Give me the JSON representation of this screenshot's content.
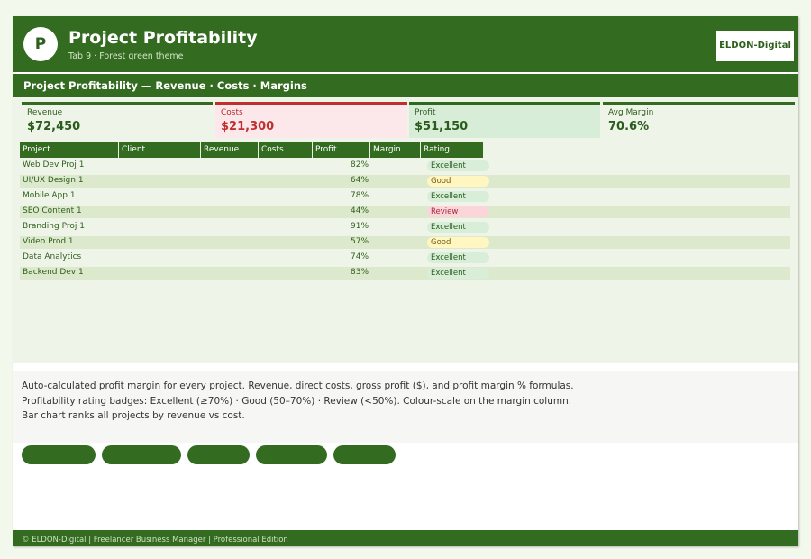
{
  "header": {
    "logo_letter": "P",
    "title": "Project Profitability",
    "subtitle": "Tab 9  ·  Forest green theme",
    "brand": "ELDON-Digital"
  },
  "sheet_title": "Project Profitability — Revenue · Costs · Margins",
  "kpis": {
    "revenue": {
      "label": "Revenue",
      "value": "$72,450"
    },
    "costs": {
      "label": "Costs",
      "value": "$21,300"
    },
    "profit": {
      "label": "Profit",
      "value": "$51,150"
    },
    "margin": {
      "label": "Avg Margin",
      "value": "70.6%"
    }
  },
  "table": {
    "columns": [
      "Project",
      "Client",
      "Revenue",
      "Costs",
      "Profit",
      "Margin",
      "Rating"
    ],
    "rows": [
      {
        "project": "Web Dev Proj 1",
        "margin": "82%",
        "rating": "Excellent"
      },
      {
        "project": "UI/UX Design 1",
        "margin": "64%",
        "rating": "Good"
      },
      {
        "project": "Mobile App 1",
        "margin": "78%",
        "rating": "Excellent"
      },
      {
        "project": "SEO Content 1",
        "margin": "44%",
        "rating": "Review"
      },
      {
        "project": "Branding Proj 1",
        "margin": "91%",
        "rating": "Excellent"
      },
      {
        "project": "Video Prod 1",
        "margin": "57%",
        "rating": "Good"
      },
      {
        "project": "Data Analytics",
        "margin": "74%",
        "rating": "Excellent"
      },
      {
        "project": "Backend Dev 1",
        "margin": "83%",
        "rating": "Excellent"
      }
    ]
  },
  "description": "Auto-calculated profit margin for every project. Revenue, direct costs, gross profit ($), and profit margin % formulas. Profitability rating badges: Excellent (≥70%) · Good (50–70%) · Review (<50%). Colour-scale on the margin column. Bar chart ranks all projects by revenue vs cost.",
  "footer": "© ELDON-Digital  |  Freelancer Business Manager  |  Professional Edition",
  "colors": {
    "primary": "#336b20",
    "cost_red": "#c02e2e",
    "badge_excellent": "#d8eed8",
    "badge_good": "#fff6c2",
    "badge_review": "#fbd5da"
  }
}
